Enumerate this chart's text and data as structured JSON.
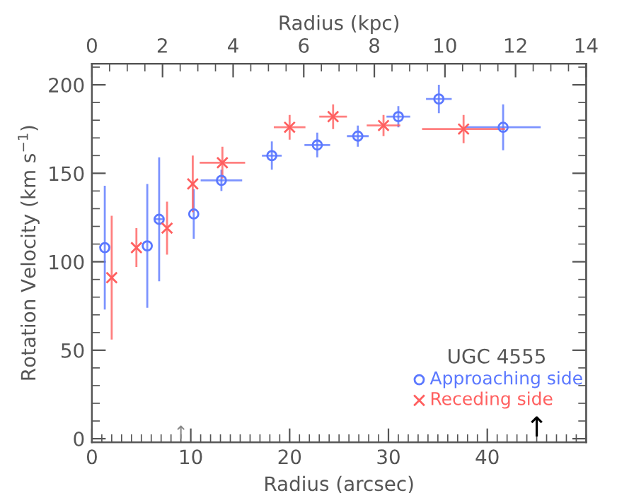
{
  "chart_data": {
    "type": "scatter",
    "xlabel": "Radius (arcsec)",
    "ylabel": "Rotation Velocity (km s$^{−1}$)",
    "x2label": "Radius (kpc)",
    "legend_title": "UGC 4555",
    "xlim": [
      0,
      50
    ],
    "xticks": [
      0,
      10,
      20,
      30,
      40
    ],
    "x2lim": [
      0,
      14
    ],
    "x2ticks": [
      0,
      2,
      4,
      6,
      8,
      10,
      12,
      14
    ],
    "ylim": [
      -2,
      212
    ],
    "yticks": [
      0,
      50,
      100,
      150,
      200
    ],
    "legend": "bottom right",
    "grid": false,
    "series": [
      {
        "name": "Approaching side",
        "color": "#5b78ff",
        "marker": "circle",
        "x": [
          1.3,
          5.6,
          6.8,
          10.3,
          13.1,
          18.2,
          22.8,
          26.9,
          31.0,
          35.1,
          41.6
        ],
        "values": [
          108,
          109,
          124,
          127,
          146,
          160,
          166,
          171,
          182,
          192,
          176
        ],
        "errors": [
          35,
          35,
          35,
          14,
          6,
          8,
          7,
          6,
          6,
          8,
          13
        ],
        "xerrors": [
          null,
          null,
          0.5,
          null,
          2.1,
          1.0,
          1.3,
          1.1,
          1.2,
          1.3,
          3.8
        ]
      },
      {
        "name": "Receding side",
        "color": "#ff5f5f",
        "marker": "cross",
        "x": [
          2.0,
          4.5,
          7.6,
          10.2,
          13.2,
          20.0,
          24.4,
          29.5,
          37.6
        ],
        "values": [
          91,
          108,
          119,
          144,
          156,
          176,
          182,
          177,
          175
        ],
        "errors": [
          35,
          11,
          15,
          16,
          9,
          7,
          7,
          6,
          8
        ],
        "xerrors": [
          null,
          null,
          null,
          null,
          2.3,
          1.6,
          1.4,
          1.7,
          4.2
        ]
      }
    ],
    "annotations": [
      "↑",
      "↑"
    ]
  }
}
